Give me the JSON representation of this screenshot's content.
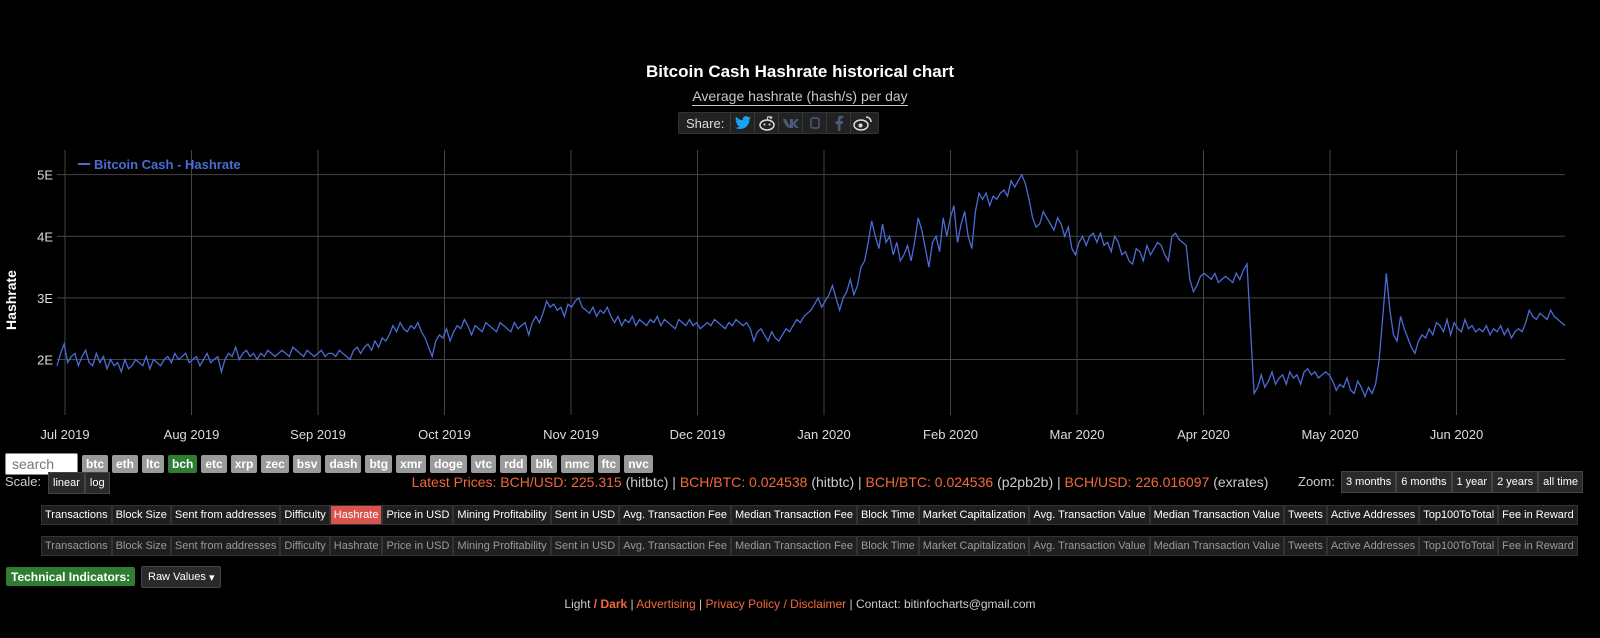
{
  "header": {
    "title": "Bitcoin Cash Hashrate historical chart",
    "subtitle": "Average hashrate (hash/s) per day",
    "share_label": "Share:"
  },
  "chart_data": {
    "type": "line",
    "title": "Bitcoin Cash Hashrate historical chart",
    "ylabel": "Hashrate",
    "ylim": [
      1.1,
      5.4
    ],
    "yticks": [
      2,
      3,
      4,
      5
    ],
    "ytick_labels": [
      "2E",
      "3E",
      "4E",
      "5E"
    ],
    "legend": "top-left",
    "xticks": [
      "Jul 2019",
      "Aug 2019",
      "Sep 2019",
      "Oct 2019",
      "Nov 2019",
      "Dec 2019",
      "Jan 2020",
      "Feb 2020",
      "Mar 2020",
      "Apr 2020",
      "May 2020",
      "Jun 2020"
    ],
    "series": [
      {
        "name": "Bitcoin Cash - Hashrate",
        "color": "#4a6cd4",
        "values": [
          1.9,
          2.1,
          2.25,
          1.95,
          2.05,
          2.1,
          1.9,
          2.05,
          2.15,
          1.95,
          1.9,
          2.1,
          1.95,
          2.05,
          1.85,
          2.0,
          1.9,
          1.95,
          1.8,
          2.0,
          1.85,
          1.9,
          2.0,
          1.95,
          1.9,
          2.05,
          1.85,
          2.0,
          1.95,
          1.9,
          2.0,
          2.05,
          1.95,
          2.1,
          2.0,
          2.05,
          2.1,
          1.95,
          2.0,
          2.05,
          1.9,
          2.0,
          2.1,
          1.95,
          2.0,
          2.05,
          1.8,
          2.0,
          2.1,
          2.05,
          2.2,
          2.0,
          2.1,
          2.15,
          2.05,
          2.1,
          2.0,
          2.1,
          2.05,
          2.15,
          2.1,
          2.05,
          2.1,
          2.15,
          2.1,
          2.05,
          2.2,
          2.15,
          2.1,
          2.05,
          2.15,
          2.1,
          2.05,
          2.1,
          2.15,
          2.05,
          2.1,
          2.1,
          2.05,
          2.15,
          2.1,
          2.05,
          2.0,
          2.15,
          2.2,
          2.1,
          2.2,
          2.25,
          2.15,
          2.3,
          2.2,
          2.35,
          2.3,
          2.4,
          2.55,
          2.45,
          2.6,
          2.5,
          2.45,
          2.55,
          2.5,
          2.6,
          2.45,
          2.35,
          2.2,
          2.05,
          2.3,
          2.4,
          2.35,
          2.5,
          2.3,
          2.45,
          2.55,
          2.5,
          2.65,
          2.55,
          2.4,
          2.55,
          2.5,
          2.45,
          2.6,
          2.55,
          2.5,
          2.45,
          2.6,
          2.55,
          2.5,
          2.45,
          2.6,
          2.5,
          2.55,
          2.6,
          2.4,
          2.6,
          2.7,
          2.6,
          2.75,
          2.95,
          2.85,
          2.9,
          2.8,
          2.85,
          2.7,
          2.9,
          2.85,
          2.95,
          3.0,
          2.85,
          2.8,
          2.75,
          2.85,
          2.7,
          2.8,
          2.75,
          2.85,
          2.7,
          2.6,
          2.7,
          2.55,
          2.65,
          2.6,
          2.7,
          2.55,
          2.65,
          2.6,
          2.55,
          2.65,
          2.6,
          2.7,
          2.55,
          2.65,
          2.6,
          2.55,
          2.5,
          2.65,
          2.6,
          2.55,
          2.65,
          2.55,
          2.6,
          2.5,
          2.55,
          2.6,
          2.55,
          2.65,
          2.6,
          2.55,
          2.5,
          2.6,
          2.55,
          2.65,
          2.6,
          2.55,
          2.6,
          2.5,
          2.3,
          2.45,
          2.5,
          2.4,
          2.3,
          2.45,
          2.35,
          2.3,
          2.4,
          2.5,
          2.45,
          2.55,
          2.65,
          2.6,
          2.7,
          2.75,
          2.8,
          2.9,
          3.0,
          2.85,
          2.95,
          3.05,
          3.2,
          3.0,
          2.8,
          3.0,
          3.1,
          3.3,
          3.05,
          3.2,
          3.5,
          3.6,
          3.9,
          4.25,
          4.0,
          3.8,
          4.2,
          3.9,
          4.0,
          3.7,
          3.9,
          3.6,
          3.7,
          3.85,
          3.6,
          3.9,
          4.3,
          4.1,
          3.8,
          3.5,
          3.9,
          4.0,
          3.75,
          4.3,
          4.0,
          4.3,
          4.5,
          3.9,
          4.2,
          4.4,
          4.0,
          3.8,
          4.4,
          4.7,
          4.6,
          4.7,
          4.5,
          4.65,
          4.6,
          4.7,
          4.75,
          4.65,
          4.9,
          4.8,
          4.9,
          5.0,
          4.85,
          4.6,
          4.3,
          4.15,
          4.2,
          4.4,
          4.3,
          4.2,
          4.1,
          4.3,
          4.2,
          4.0,
          4.15,
          3.8,
          3.7,
          3.9,
          4.0,
          3.85,
          4.0,
          4.05,
          3.9,
          4.05,
          3.85,
          3.9,
          3.75,
          4.0,
          3.9,
          3.7,
          3.75,
          3.6,
          3.55,
          3.8,
          3.75,
          3.6,
          3.85,
          3.7,
          3.8,
          3.9,
          3.85,
          3.7,
          3.6,
          4.0,
          4.05,
          3.95,
          3.9,
          3.85,
          3.3,
          3.1,
          3.2,
          3.35,
          3.4,
          3.35,
          3.3,
          3.4,
          3.25,
          3.3,
          3.35,
          3.3,
          3.25,
          3.4,
          3.3,
          3.45,
          3.55,
          2.5,
          1.45,
          1.55,
          1.75,
          1.55,
          1.65,
          1.8,
          1.6,
          1.7,
          1.75,
          1.6,
          1.8,
          1.7,
          1.75,
          1.6,
          1.8,
          1.85,
          1.75,
          1.8,
          1.7,
          1.75,
          1.8,
          1.75,
          1.65,
          1.5,
          1.6,
          1.55,
          1.7,
          1.5,
          1.45,
          1.65,
          1.55,
          1.4,
          1.55,
          1.45,
          1.6,
          2.0,
          2.7,
          3.4,
          2.8,
          2.4,
          2.3,
          2.7,
          2.5,
          2.35,
          2.2,
          2.1,
          2.3,
          2.4,
          2.35,
          2.5,
          2.4,
          2.6,
          2.55,
          2.45,
          2.65,
          2.4,
          2.6,
          2.5,
          2.45,
          2.65,
          2.5,
          2.55,
          2.45,
          2.5,
          2.45,
          2.55,
          2.4,
          2.5,
          2.45,
          2.55,
          2.4,
          2.5,
          2.35,
          2.45,
          2.5,
          2.45,
          2.6,
          2.8,
          2.7,
          2.65,
          2.75,
          2.7,
          2.65,
          2.8,
          2.7,
          2.65,
          2.6,
          2.55
        ]
      }
    ]
  },
  "coins": [
    "btc",
    "eth",
    "ltc",
    "bch",
    "etc",
    "xrp",
    "zec",
    "bsv",
    "dash",
    "btg",
    "xmr",
    "doge",
    "vtc",
    "rdd",
    "blk",
    "nmc",
    "ftc",
    "nvc"
  ],
  "active_coin": "bch",
  "search": {
    "placeholder": "search"
  },
  "scale": {
    "label": "Scale:",
    "linear": "linear",
    "log": "log"
  },
  "prices": {
    "latest": "Latest Prices:",
    "p1": "BCH/USD: 225.315",
    "s1": "(hitbtc)",
    "p2": "BCH/BTC: 0.024538",
    "s2": "(hitbtc)",
    "p3": "BCH/BTC: 0.024536",
    "s3": "(p2pb2b)",
    "p4": "BCH/USD: 226.016097",
    "s4": "(exrates)"
  },
  "zoom": {
    "label": "Zoom:",
    "options": [
      "3 months",
      "6 months",
      "1 year",
      "2 years",
      "all time"
    ]
  },
  "tabs": [
    "Transactions",
    "Block Size",
    "Sent from addresses",
    "Difficulty",
    "Hashrate",
    "Price in USD",
    "Mining Profitability",
    "Sent in USD",
    "Avg. Transaction Fee",
    "Median Transaction Fee",
    "Block Time",
    "Market Capitalization",
    "Avg. Transaction Value",
    "Median Transaction Value",
    "Tweets",
    "Active Addresses",
    "Top100ToTotal",
    "Fee in Reward"
  ],
  "active_tab": "Hashrate",
  "technical": {
    "label": "Technical Indicators:",
    "select": "Raw Values"
  },
  "footer": {
    "light": "Light",
    "dark": "Dark",
    "advertising": "Advertising",
    "privacy": "Privacy Policy / Disclaimer",
    "contact": "Contact: bitinfocharts@gmail.com"
  }
}
